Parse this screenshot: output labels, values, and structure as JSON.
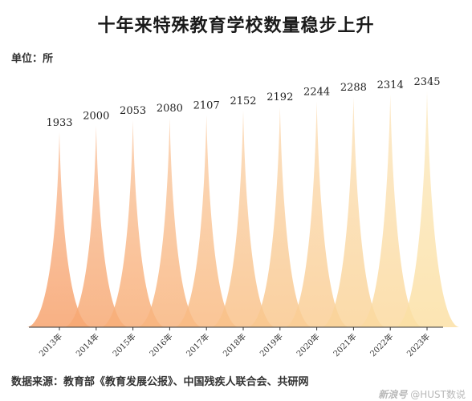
{
  "header": {
    "title": "十年来特殊教育学校数量稳步上升",
    "unit": "单位：所"
  },
  "footer": {
    "source": "数据来源：教育部《教育发展公报》、中国残疾人联合会、共研网",
    "watermark_brand": "新浪号",
    "watermark_text": "@HUST数说"
  },
  "colors": {
    "start": "#f7a36e",
    "end": "#fbe0a5",
    "axis": "#333333"
  },
  "chart_data": {
    "type": "area",
    "title": "十年来特殊教育学校数量稳步上升",
    "ylabel": "单位：所",
    "categories": [
      "2013年",
      "2014年",
      "2015年",
      "2016年",
      "2017年",
      "2018年",
      "2019年",
      "2020年",
      "2021年",
      "2022年",
      "2023年"
    ],
    "values": [
      1933,
      2000,
      2053,
      2080,
      2107,
      2152,
      2192,
      2244,
      2288,
      2314,
      2345
    ],
    "ylim": [
      0,
      2400
    ],
    "grid": false,
    "legend": "none"
  }
}
